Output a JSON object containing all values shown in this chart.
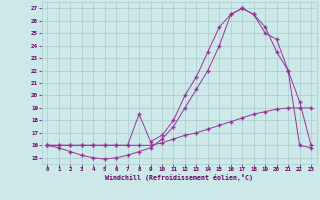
{
  "background_color": "#cde8e8",
  "grid_color": "#aacccc",
  "line_color": "#993399",
  "marker": "+",
  "xlabel": "Windchill (Refroidissement éolien,°C)",
  "xlabel_color": "#660066",
  "tick_color": "#660066",
  "xlim": [
    -0.5,
    23.5
  ],
  "ylim": [
    14.5,
    27.5
  ],
  "xticks": [
    0,
    1,
    2,
    3,
    4,
    5,
    6,
    7,
    8,
    9,
    10,
    11,
    12,
    13,
    14,
    15,
    16,
    17,
    18,
    19,
    20,
    21,
    22,
    23
  ],
  "yticks": [
    15,
    16,
    17,
    18,
    19,
    20,
    21,
    22,
    23,
    24,
    25,
    26,
    27
  ],
  "line1_x": [
    0,
    1,
    2,
    3,
    4,
    5,
    6,
    7,
    8,
    9,
    10,
    11,
    12,
    13,
    14,
    15,
    16,
    17,
    18,
    19,
    20,
    21,
    22,
    23
  ],
  "line1_y": [
    16.0,
    16.0,
    16.0,
    16.0,
    16.0,
    16.0,
    16.0,
    16.0,
    16.0,
    16.0,
    16.2,
    16.5,
    16.8,
    17.0,
    17.3,
    17.6,
    17.9,
    18.2,
    18.5,
    18.7,
    18.9,
    19.0,
    19.0,
    19.0
  ],
  "line2_x": [
    0,
    1,
    2,
    3,
    4,
    5,
    6,
    7,
    8,
    9,
    10,
    11,
    12,
    13,
    14,
    15,
    16,
    17,
    18,
    19,
    20,
    21,
    22,
    23
  ],
  "line2_y": [
    16.0,
    15.8,
    15.5,
    15.2,
    15.0,
    14.9,
    15.0,
    15.2,
    15.5,
    15.8,
    16.5,
    17.5,
    19.0,
    20.5,
    22.0,
    24.0,
    26.5,
    27.0,
    26.5,
    25.5,
    23.5,
    22.0,
    19.5,
    16.0
  ],
  "line3_x": [
    0,
    1,
    2,
    3,
    4,
    5,
    6,
    7,
    8,
    9,
    10,
    11,
    12,
    13,
    14,
    15,
    16,
    17,
    18,
    19,
    20,
    21,
    22,
    23
  ],
  "line3_y": [
    16.0,
    16.0,
    16.0,
    16.0,
    16.0,
    16.0,
    16.0,
    16.0,
    18.5,
    16.3,
    16.8,
    18.0,
    20.0,
    21.5,
    23.5,
    25.5,
    26.5,
    27.0,
    26.5,
    25.0,
    24.5,
    22.0,
    16.0,
    15.8
  ]
}
